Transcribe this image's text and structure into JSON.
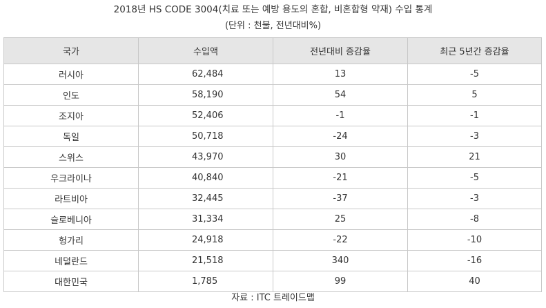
{
  "title": "2018년 HS CODE 3004(치료 또는 예방 용도의 혼합, 비혼합형 약재) 수입 통계",
  "subtitle": "(단위 : 천불, 전년대비%)",
  "table": {
    "headers": [
      "국가",
      "수입액",
      "전년대비 증감율",
      "최근 5년간 증감율"
    ],
    "rows": [
      [
        "러시아",
        "62,484",
        "13",
        "-5"
      ],
      [
        "인도",
        "58,190",
        "54",
        "5"
      ],
      [
        "조지아",
        "52,406",
        "-1",
        "-1"
      ],
      [
        "독일",
        "50,718",
        "-24",
        "-3"
      ],
      [
        "스위스",
        "43,970",
        "30",
        "21"
      ],
      [
        "우크라이나",
        "40,840",
        "-21",
        "-5"
      ],
      [
        "라트비아",
        "32,445",
        "-37",
        "-3"
      ],
      [
        "슬로베니아",
        "31,334",
        "25",
        "-8"
      ],
      [
        "헝가리",
        "24,918",
        "-22",
        "-10"
      ],
      [
        "네덜란드",
        "21,518",
        "340",
        "-16"
      ],
      [
        "대한민국",
        "1,785",
        "99",
        "40"
      ]
    ]
  },
  "source": "자료 : ITC 트레이드맵"
}
